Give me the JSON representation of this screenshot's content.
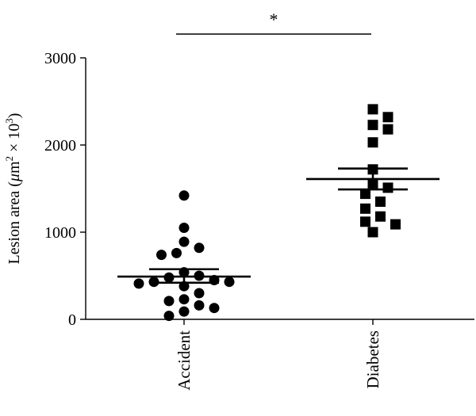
{
  "chart_data": {
    "type": "scatter",
    "ylabel": {
      "prefix": "Lesion area (",
      "mu": "μ",
      "m": "m",
      "sq": "2",
      "times": " × 10",
      "exp": "3",
      "suffix": ")"
    },
    "ylim": [
      0,
      3000
    ],
    "yticks": [
      0,
      1000,
      2000,
      3000
    ],
    "ytick_labels": [
      "0",
      "1000",
      "2000",
      "3000"
    ],
    "categories": [
      "Accident",
      "Diabetes"
    ],
    "significance": {
      "label": "*",
      "between": [
        "Accident",
        "Diabetes"
      ]
    },
    "grid": false,
    "series": [
      {
        "name": "Accident",
        "marker": "circle",
        "mean": 490,
        "sem_upper": 575,
        "sem_lower": 420,
        "values": [
          1420,
          1050,
          890,
          820,
          760,
          740,
          540,
          500,
          480,
          450,
          430,
          430,
          410,
          380,
          300,
          230,
          210,
          160,
          130,
          90,
          40
        ]
      },
      {
        "name": "Diabetes",
        "marker": "square",
        "mean": 1610,
        "sem_upper": 1730,
        "sem_lower": 1490,
        "values": [
          2410,
          2320,
          2230,
          2180,
          2030,
          1720,
          1560,
          1510,
          1440,
          1350,
          1270,
          1180,
          1120,
          1090,
          1000
        ]
      }
    ]
  }
}
